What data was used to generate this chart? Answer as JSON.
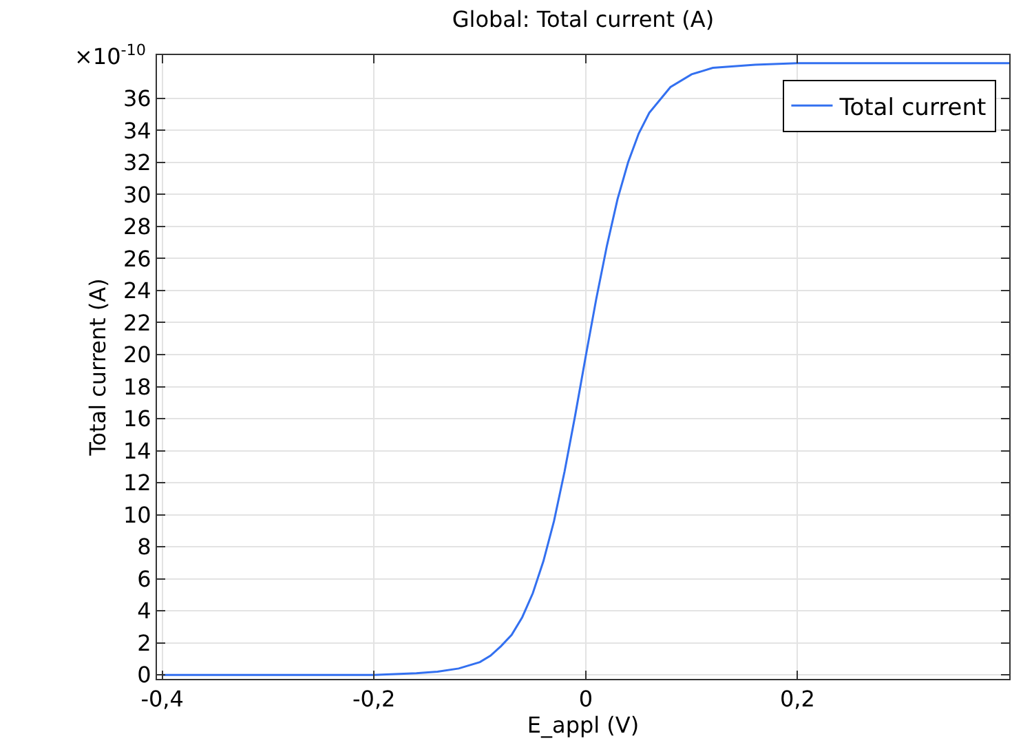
{
  "chart_data": {
    "type": "line",
    "title": "Global: Total current (A)",
    "xlabel": "E_appl (V)",
    "ylabel": "Total current (A)",
    "annotations": [
      "×10$^{-10}$"
    ],
    "x": [
      -0.4,
      -0.3,
      -0.2,
      -0.16,
      -0.14,
      -0.12,
      -0.1,
      -0.09,
      -0.08,
      -0.07,
      -0.06,
      -0.05,
      -0.04,
      -0.03,
      -0.02,
      -0.01,
      0,
      0.01,
      0.02,
      0.03,
      0.04,
      0.05,
      0.06,
      0.08,
      0.1,
      0.12,
      0.14,
      0.16,
      0.2,
      0.3,
      0.4
    ],
    "series": [
      {
        "name": "Total current",
        "color": "#3370f0",
        "values": [
          0,
          0,
          0,
          0.1,
          0.2,
          0.4,
          0.8,
          1.2,
          1.8,
          2.5,
          3.6,
          5.1,
          7.1,
          9.6,
          12.7,
          16.2,
          19.9,
          23.5,
          26.8,
          29.7,
          32,
          33.8,
          35.1,
          36.7,
          37.5,
          37.9,
          38,
          38.1,
          38.2,
          38.2,
          38.2
        ]
      }
    ],
    "xlim": [
      -0.405,
      0.4
    ],
    "ylim": [
      -0.25,
      38.7
    ],
    "xticks": [
      {
        "value": -0.4,
        "label": "-0,4"
      },
      {
        "value": -0.2,
        "label": "-0,2"
      },
      0,
      {
        "value": 0.2,
        "label": "0,2"
      }
    ],
    "yticks": [
      0,
      2,
      4,
      6,
      8,
      10,
      12,
      14,
      16,
      18,
      20,
      22,
      24,
      26,
      28,
      30,
      32,
      34,
      36
    ],
    "grid": true,
    "legend": "top right",
    "line_style": "solid"
  }
}
